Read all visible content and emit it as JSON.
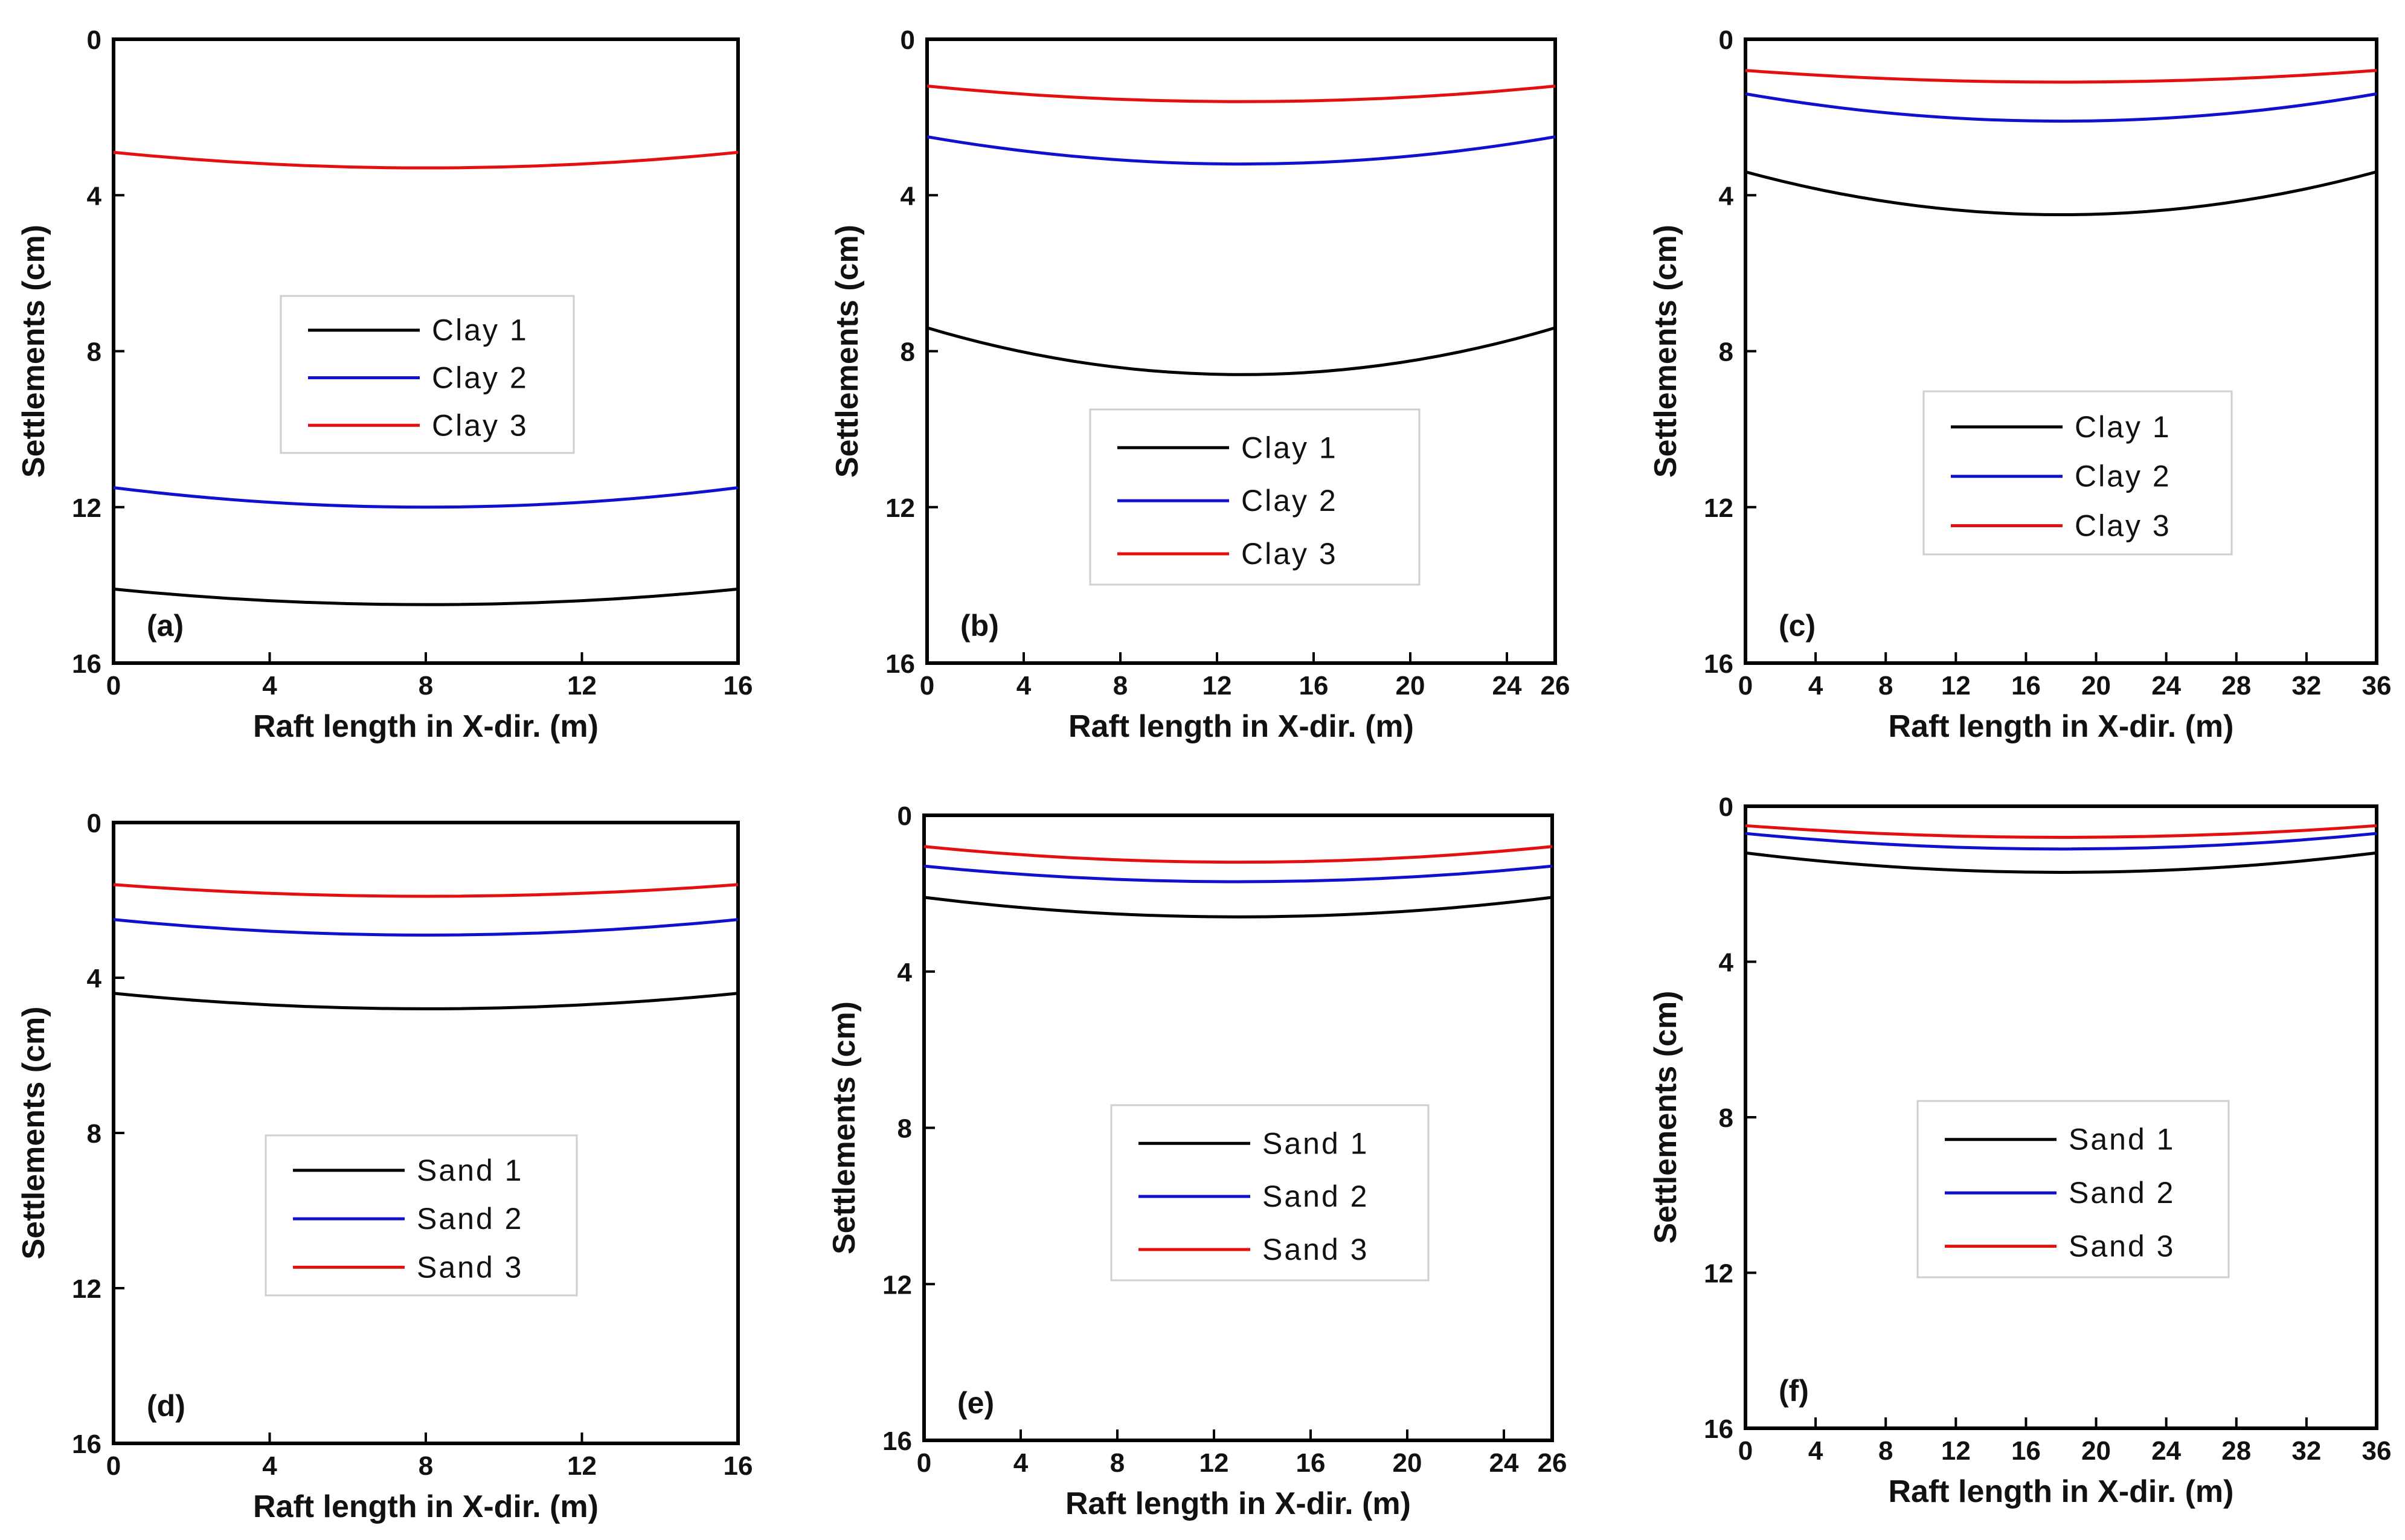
{
  "colors": {
    "series1": "#000000",
    "series2": "#1010d0",
    "series3": "#e41010",
    "frame": "#000000"
  },
  "chart_data": [
    {
      "type": "line",
      "panel_label": "(a)",
      "xlabel": "Raft length in X-dir. (m)",
      "ylabel": "Settlements (cm)",
      "xlim": [
        0,
        16
      ],
      "ylim": [
        16,
        0
      ],
      "y_inverted": true,
      "xticks": [
        0,
        4,
        8,
        12,
        16
      ],
      "yticks": [
        0,
        4,
        8,
        12,
        16
      ],
      "legend_position": "center",
      "series": [
        {
          "name": "Clay 1",
          "x": [
            0,
            8,
            16
          ],
          "y": [
            14.1,
            14.5,
            14.1
          ]
        },
        {
          "name": "Clay 2",
          "x": [
            0,
            8,
            16
          ],
          "y": [
            11.5,
            12.0,
            11.5
          ]
        },
        {
          "name": "Clay 3",
          "x": [
            0,
            8,
            16
          ],
          "y": [
            2.9,
            3.3,
            2.9
          ]
        }
      ]
    },
    {
      "type": "line",
      "panel_label": "(b)",
      "xlabel": "Raft length in X-dir. (m)",
      "ylabel": "Settlements (cm)",
      "xlim": [
        0,
        26
      ],
      "ylim": [
        16,
        0
      ],
      "y_inverted": true,
      "xticks": [
        0,
        4,
        8,
        12,
        16,
        20,
        24,
        26
      ],
      "yticks": [
        0,
        4,
        8,
        12,
        16
      ],
      "legend_position": "lower-center",
      "series": [
        {
          "name": "Clay 1",
          "x": [
            0,
            13,
            26
          ],
          "y": [
            7.4,
            8.6,
            7.4
          ]
        },
        {
          "name": "Clay 2",
          "x": [
            0,
            13,
            26
          ],
          "y": [
            2.5,
            3.2,
            2.5
          ]
        },
        {
          "name": "Clay 3",
          "x": [
            0,
            13,
            26
          ],
          "y": [
            1.2,
            1.6,
            1.2
          ]
        }
      ]
    },
    {
      "type": "line",
      "panel_label": "(c)",
      "xlabel": "Raft length in X-dir. (m)",
      "ylabel": "Settlements (cm)",
      "xlim": [
        0,
        36
      ],
      "ylim": [
        16,
        0
      ],
      "y_inverted": true,
      "xticks": [
        0,
        4,
        8,
        12,
        16,
        20,
        24,
        28,
        32,
        36
      ],
      "yticks": [
        0,
        4,
        8,
        12,
        16
      ],
      "legend_position": "center",
      "series": [
        {
          "name": "Clay 1",
          "x": [
            0,
            18,
            36
          ],
          "y": [
            3.4,
            4.5,
            3.4
          ]
        },
        {
          "name": "Clay 2",
          "x": [
            0,
            18,
            36
          ],
          "y": [
            1.4,
            2.1,
            1.4
          ]
        },
        {
          "name": "Clay 3",
          "x": [
            0,
            18,
            36
          ],
          "y": [
            0.8,
            1.1,
            0.8
          ]
        }
      ]
    },
    {
      "type": "line",
      "panel_label": "(d)",
      "xlabel": "Raft length in X-dir. (m)",
      "ylabel": "Settlements (cm)",
      "xlim": [
        0,
        16
      ],
      "ylim": [
        16,
        0
      ],
      "y_inverted": true,
      "xticks": [
        0,
        4,
        8,
        12,
        16
      ],
      "yticks": [
        0,
        4,
        8,
        12,
        16
      ],
      "legend_position": "center",
      "series": [
        {
          "name": "Sand 1",
          "x": [
            0,
            8,
            16
          ],
          "y": [
            4.4,
            4.8,
            4.4
          ]
        },
        {
          "name": "Sand 2",
          "x": [
            0,
            8,
            16
          ],
          "y": [
            2.5,
            2.9,
            2.5
          ]
        },
        {
          "name": "Sand 3",
          "x": [
            0,
            8,
            16
          ],
          "y": [
            1.6,
            1.9,
            1.6
          ]
        }
      ]
    },
    {
      "type": "line",
      "panel_label": "(e)",
      "xlabel": "Raft length in X-dir. (m)",
      "ylabel": "Settlements (cm)",
      "xlim": [
        0,
        26
      ],
      "ylim": [
        16,
        0
      ],
      "y_inverted": true,
      "xticks": [
        0,
        4,
        8,
        12,
        16,
        20,
        24,
        26
      ],
      "yticks": [
        0,
        4,
        8,
        12,
        16
      ],
      "legend_position": "center",
      "series": [
        {
          "name": "Sand 1",
          "x": [
            0,
            13,
            26
          ],
          "y": [
            2.1,
            2.6,
            2.1
          ]
        },
        {
          "name": "Sand 2",
          "x": [
            0,
            13,
            26
          ],
          "y": [
            1.3,
            1.7,
            1.3
          ]
        },
        {
          "name": "Sand 3",
          "x": [
            0,
            13,
            26
          ],
          "y": [
            0.8,
            1.2,
            0.8
          ]
        }
      ]
    },
    {
      "type": "line",
      "panel_label": "(f)",
      "xlabel": "Raft length in X-dir. (m)",
      "ylabel": "Settlements (cm)",
      "xlim": [
        0,
        36
      ],
      "ylim": [
        16,
        0
      ],
      "y_inverted": true,
      "xticks": [
        0,
        4,
        8,
        12,
        16,
        20,
        24,
        28,
        32,
        36
      ],
      "yticks": [
        0,
        4,
        8,
        12,
        16
      ],
      "legend_position": "center",
      "series": [
        {
          "name": "Sand 1",
          "x": [
            0,
            18,
            36
          ],
          "y": [
            1.2,
            1.7,
            1.2
          ]
        },
        {
          "name": "Sand 2",
          "x": [
            0,
            18,
            36
          ],
          "y": [
            0.7,
            1.1,
            0.7
          ]
        },
        {
          "name": "Sand 3",
          "x": [
            0,
            18,
            36
          ],
          "y": [
            0.5,
            0.8,
            0.5
          ]
        }
      ]
    }
  ]
}
